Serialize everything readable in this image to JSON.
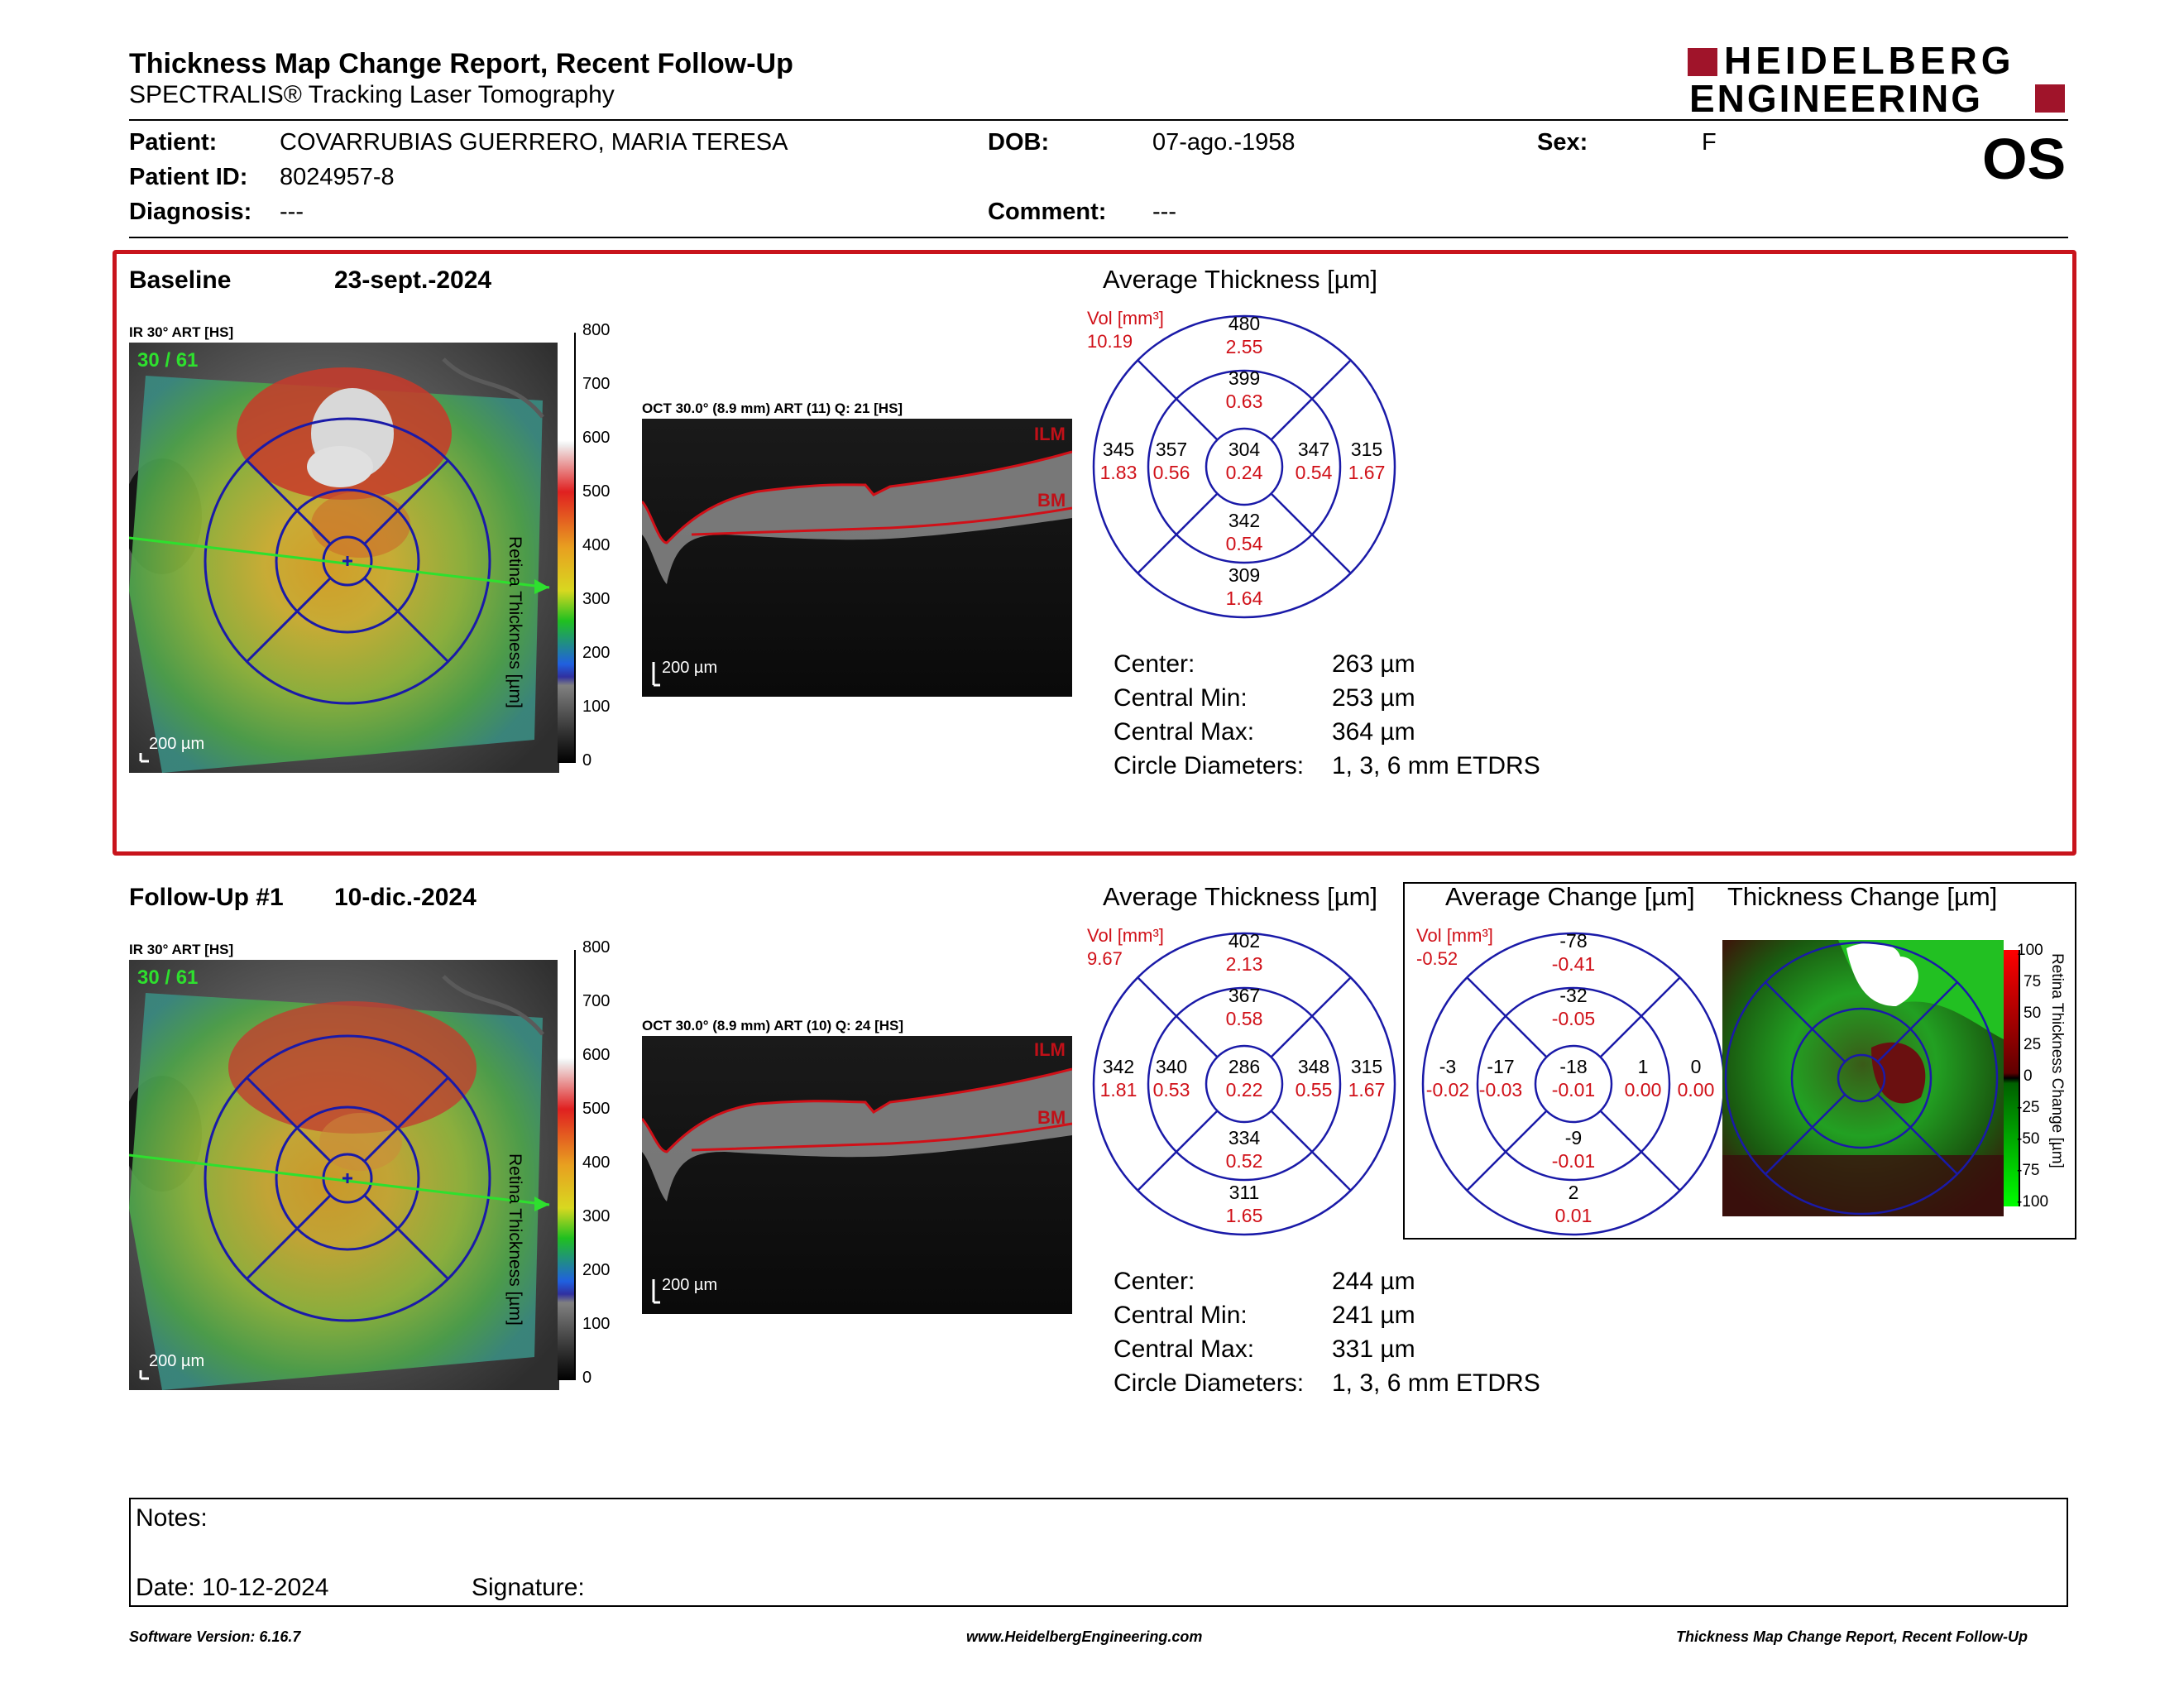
{
  "header": {
    "title": "Thickness Map Change Report, Recent Follow-Up",
    "subtitle": "SPECTRALIS® Tracking Laser Tomography",
    "logo_line1": "HEIDELBERG",
    "logo_line2": "ENGINEERING",
    "eye": "OS"
  },
  "patient": {
    "patient_label": "Patient:",
    "patient_value": "COVARRUBIAS GUERRERO, MARIA TERESA",
    "dob_label": "DOB:",
    "dob_value": "07-ago.-1958",
    "sex_label": "Sex:",
    "sex_value": "F",
    "id_label": "Patient ID:",
    "id_value": "8024957-8",
    "diagnosis_label": "Diagnosis:",
    "diagnosis_value": "---",
    "comment_label": "Comment:",
    "comment_value": "---"
  },
  "baseline": {
    "label": "Baseline",
    "date": "23-sept.-2024",
    "ir_caption": "IR 30° ART [HS]",
    "ir_counter": "30 / 61",
    "scale_bar": "200 µm",
    "colorbar_title": "Retina Thickness [µm]",
    "colorbar_ticks": [
      "800",
      "700",
      "600",
      "500",
      "400",
      "300",
      "200",
      "100",
      "0"
    ],
    "oct_caption": "OCT 30.0° (8.9 mm) ART (11) Q: 21 [HS]",
    "ilm": "ILM",
    "bm": "BM",
    "avg_title": "Average Thickness [µm]",
    "vol_label": "Vol [mm³]",
    "vol_value": "10.19",
    "grid": {
      "outer_top": [
        "480",
        "2.55"
      ],
      "inner_top": [
        "399",
        "0.63"
      ],
      "outer_left": [
        "345",
        "1.83"
      ],
      "inner_left": [
        "357",
        "0.56"
      ],
      "center": [
        "304",
        "0.24"
      ],
      "inner_right": [
        "347",
        "0.54"
      ],
      "outer_right": [
        "315",
        "1.67"
      ],
      "inner_bottom": [
        "342",
        "0.54"
      ],
      "outer_bottom": [
        "309",
        "1.64"
      ]
    },
    "metrics": {
      "center_label": "Center:",
      "center_value": "263 µm",
      "min_label": "Central Min:",
      "min_value": "253 µm",
      "max_label": "Central Max:",
      "max_value": "364 µm",
      "diam_label": "Circle Diameters:",
      "diam_value": "1, 3, 6 mm ETDRS"
    }
  },
  "followup": {
    "label": "Follow-Up #1",
    "date": "10-dic.-2024",
    "ir_caption": "IR 30° ART [HS]",
    "ir_counter": "30 / 61",
    "scale_bar": "200 µm",
    "colorbar_title": "Retina Thickness [µm]",
    "colorbar_ticks": [
      "800",
      "700",
      "600",
      "500",
      "400",
      "300",
      "200",
      "100",
      "0"
    ],
    "oct_caption": "OCT 30.0° (8.9 mm) ART (10) Q: 24 [HS]",
    "ilm": "ILM",
    "bm": "BM",
    "avg_title": "Average Thickness [µm]",
    "vol_label": "Vol [mm³]",
    "vol_value": "9.67",
    "grid": {
      "outer_top": [
        "402",
        "2.13"
      ],
      "inner_top": [
        "367",
        "0.58"
      ],
      "outer_left": [
        "342",
        "1.81"
      ],
      "inner_left": [
        "340",
        "0.53"
      ],
      "center": [
        "286",
        "0.22"
      ],
      "inner_right": [
        "348",
        "0.55"
      ],
      "outer_right": [
        "315",
        "1.67"
      ],
      "inner_bottom": [
        "334",
        "0.52"
      ],
      "outer_bottom": [
        "311",
        "1.65"
      ]
    },
    "change_title": "Average Change [µm]",
    "change_vol_label": "Vol [mm³]",
    "change_vol_value": "-0.52",
    "change_grid": {
      "outer_top": [
        "-78",
        "-0.41"
      ],
      "inner_top": [
        "-32",
        "-0.05"
      ],
      "outer_left": [
        "-3",
        "-0.02"
      ],
      "inner_left": [
        "-17",
        "-0.03"
      ],
      "center": [
        "-18",
        "-0.01"
      ],
      "inner_right": [
        "1",
        "0.00"
      ],
      "outer_right": [
        "0",
        "0.00"
      ],
      "inner_bottom": [
        "-9",
        "-0.01"
      ],
      "outer_bottom": [
        "2",
        "0.01"
      ]
    },
    "thickness_change_title": "Thickness Change [µm]",
    "change_colorbar_title": "Retina Thickness Change [µm]",
    "change_ticks": [
      "100",
      "75",
      "50",
      "25",
      "0",
      "-25",
      "-50",
      "-75",
      "-100"
    ],
    "metrics": {
      "center_label": "Center:",
      "center_value": "244 µm",
      "min_label": "Central Min:",
      "min_value": "241 µm",
      "max_label": "Central Max:",
      "max_value": "331 µm",
      "diam_label": "Circle Diameters:",
      "diam_value": "1, 3, 6 mm ETDRS"
    }
  },
  "notes": {
    "notes_label": "Notes:",
    "date_label": "Date: 10-12-2024",
    "signature_label": "Signature:"
  },
  "footer": {
    "software": "Software Version: 6.16.7",
    "website": "www.HeidelbergEngineering.com",
    "report_name": "Thickness Map Change Report, Recent Follow-Up"
  },
  "colors": {
    "accent_red": "#c8141c",
    "brand": "#a0142a",
    "grid_blue": "#1a1aa8"
  }
}
